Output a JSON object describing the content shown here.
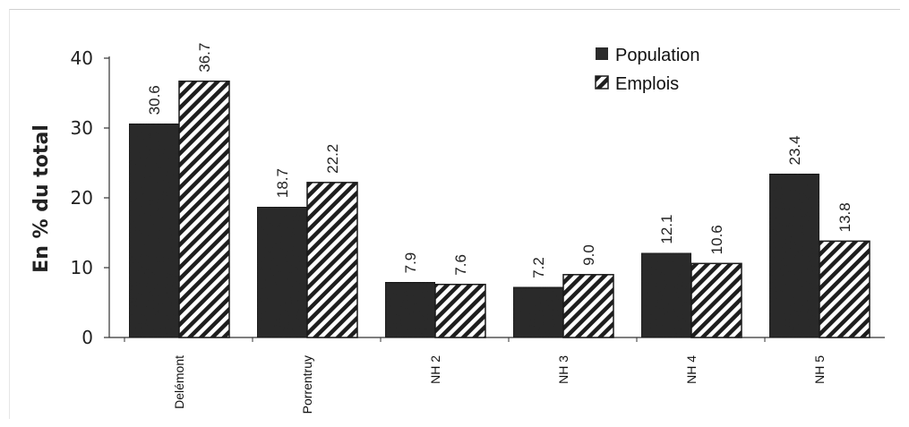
{
  "chart_data": {
    "type": "bar",
    "ylabel": "En % du total",
    "xlabel": "",
    "ylim": [
      0,
      40
    ],
    "yticks": [
      "0",
      "10",
      "20",
      "30",
      "40"
    ],
    "categories": [
      "Delémont",
      "Porrentruy",
      "NH 2",
      "NH 3",
      "NH 4",
      "NH 5"
    ],
    "series": [
      {
        "name": "Population",
        "values": [
          30.6,
          18.7,
          7.9,
          7.2,
          12.1,
          23.4
        ],
        "labels": [
          "30.6",
          "18.7",
          "7.9",
          "7.2",
          "12.1",
          "23.4"
        ],
        "fill": "solid",
        "color": "#2b2b2b"
      },
      {
        "name": "Emplois",
        "values": [
          36.7,
          22.2,
          7.6,
          9.0,
          10.6,
          13.8
        ],
        "labels": [
          "36.7",
          "22.2",
          "7.6",
          "9.0",
          "10.6",
          "13.8"
        ],
        "fill": "hatched",
        "color": "#1e1e1e"
      }
    ],
    "legend": "top-right",
    "grid": false
  }
}
